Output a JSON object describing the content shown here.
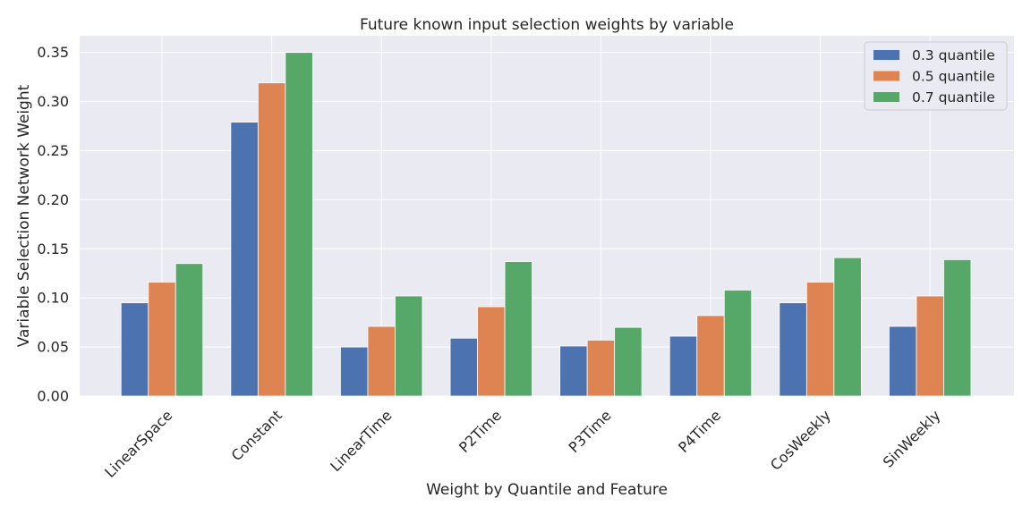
{
  "chart_data": {
    "type": "bar",
    "title": "Future known input selection weights by variable",
    "xlabel": "Weight by Quantile and Feature",
    "ylabel": "Variable Selection Network Weight",
    "categories": [
      "LinearSpace",
      "Constant",
      "LinearTime",
      "P2Time",
      "P3Time",
      "P4Time",
      "CosWeekly",
      "SinWeekly"
    ],
    "series": [
      {
        "name": "0.3 quantile",
        "color": "#4c72b0",
        "values": [
          0.095,
          0.279,
          0.05,
          0.059,
          0.051,
          0.061,
          0.095,
          0.071
        ]
      },
      {
        "name": "0.5 quantile",
        "color": "#dd8452",
        "values": [
          0.116,
          0.319,
          0.071,
          0.091,
          0.057,
          0.082,
          0.116,
          0.102
        ]
      },
      {
        "name": "0.7 quantile",
        "color": "#55a868",
        "values": [
          0.135,
          0.35,
          0.102,
          0.137,
          0.07,
          0.108,
          0.141,
          0.139
        ]
      }
    ],
    "ylim": [
      0,
      0.367
    ],
    "yticks": [
      "0.00",
      "0.05",
      "0.10",
      "0.15",
      "0.20",
      "0.25",
      "0.30",
      "0.35"
    ],
    "grid": true,
    "legend_position": "top-right",
    "background_color": "#eaeaf2",
    "grid_color": "#ffffff"
  }
}
